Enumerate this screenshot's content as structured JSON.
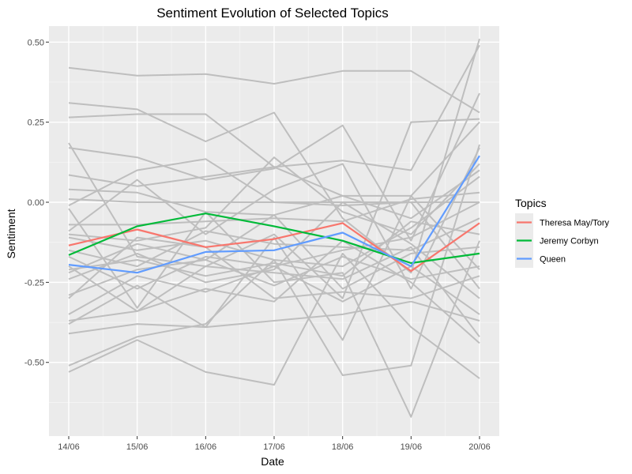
{
  "chart_data": {
    "type": "line",
    "title": "Sentiment Evolution of Selected Topics",
    "xlabel": "Date",
    "ylabel": "Sentiment",
    "categories": [
      "14/06",
      "15/06",
      "16/06",
      "17/06",
      "18/06",
      "19/06",
      "20/06"
    ],
    "ylim": [
      -0.73,
      0.55
    ],
    "yticks": [
      -0.5,
      -0.25,
      0.0,
      0.25,
      0.5
    ],
    "ytick_labels": [
      "-0.50",
      "-0.25",
      "0.00",
      "0.25",
      "0.50"
    ],
    "grid": true,
    "legend": {
      "title": "Topics",
      "position": "right"
    },
    "highlight_series": [
      {
        "name": "Theresa May/Tory",
        "color": "#F8766D",
        "values": [
          -0.135,
          -0.085,
          -0.14,
          -0.115,
          -0.065,
          -0.215,
          -0.065
        ]
      },
      {
        "name": "Jeremy Corbyn",
        "color": "#00BA38",
        "values": [
          -0.165,
          -0.075,
          -0.035,
          -0.075,
          -0.12,
          -0.19,
          -0.16
        ]
      },
      {
        "name": "Queen",
        "color": "#619CFF",
        "values": [
          -0.195,
          -0.22,
          -0.155,
          -0.15,
          -0.095,
          -0.2,
          0.145
        ]
      }
    ],
    "background_series_color": "#bebebe",
    "background_series": [
      [
        0.42,
        0.395,
        0.4,
        0.37,
        0.41,
        0.41,
        0.28
      ],
      [
        0.31,
        0.29,
        0.19,
        0.28,
        -0.05,
        -0.22,
        0.51
      ],
      [
        0.265,
        0.275,
        0.275,
        0.11,
        0.13,
        0.1,
        0.49
      ],
      [
        0.185,
        -0.17,
        -0.2,
        -0.1,
        -0.3,
        0.25,
        0.26
      ],
      [
        0.17,
        0.14,
        0.07,
        0.105,
        0.24,
        -0.12,
        0.34
      ],
      [
        0.085,
        0.05,
        0.08,
        0.11,
        0.02,
        -0.05,
        0.1
      ],
      [
        0.04,
        0.03,
        -0.03,
        -0.04,
        0.02,
        0.02,
        0.25
      ],
      [
        0.01,
        0.0,
        0.0,
        0.0,
        0.0,
        0.0,
        0.0
      ],
      [
        -0.01,
        0.1,
        0.135,
        0.0,
        -0.01,
        0.0,
        -0.27
      ],
      [
        -0.07,
        -0.07,
        -0.06,
        -0.05,
        -0.06,
        0.01,
        0.03
      ],
      [
        -0.09,
        0.07,
        -0.1,
        0.04,
        0.12,
        -0.27,
        0.17
      ],
      [
        -0.1,
        -0.12,
        -0.08,
        0.14,
        -0.03,
        -0.1,
        0.12
      ],
      [
        -0.11,
        -0.15,
        -0.12,
        -0.18,
        -0.2,
        -0.08,
        0.08
      ],
      [
        -0.15,
        -0.2,
        -0.09,
        -0.13,
        -0.14,
        -0.15,
        -0.05
      ],
      [
        -0.17,
        -0.27,
        -0.17,
        -0.2,
        -0.15,
        -0.11,
        0.0
      ],
      [
        -0.21,
        -0.18,
        -0.23,
        -0.19,
        -0.23,
        -0.06,
        -0.1
      ],
      [
        -0.22,
        -0.13,
        -0.18,
        -0.26,
        -0.17,
        -0.24,
        -0.2
      ],
      [
        -0.24,
        -0.16,
        -0.25,
        -0.21,
        0.0,
        -0.13,
        -0.3
      ],
      [
        -0.29,
        -0.21,
        -0.18,
        -0.04,
        -0.27,
        -0.16,
        -0.14
      ],
      [
        -0.3,
        -0.11,
        -0.14,
        -0.3,
        -0.28,
        -0.3,
        -0.23
      ],
      [
        -0.35,
        -0.23,
        -0.28,
        -0.2,
        -0.31,
        -0.2,
        -0.35
      ],
      [
        -0.37,
        -0.34,
        -0.2,
        -0.22,
        -0.24,
        -0.14,
        -0.42
      ],
      [
        -0.38,
        -0.26,
        -0.39,
        -0.11,
        -0.43,
        0.02,
        -0.21
      ],
      [
        -0.41,
        -0.38,
        -0.39,
        -0.37,
        -0.35,
        -0.31,
        -0.37
      ],
      [
        -0.51,
        -0.42,
        -0.38,
        -0.18,
        -0.54,
        -0.51,
        0.18
      ],
      [
        -0.53,
        -0.43,
        -0.53,
        -0.57,
        -0.16,
        -0.39,
        -0.55
      ],
      [
        -0.02,
        -0.33,
        -0.03,
        -0.25,
        -0.22,
        -0.67,
        -0.12
      ],
      [
        -0.2,
        -0.34,
        -0.27,
        -0.31,
        -0.12,
        -0.25,
        -0.44
      ]
    ]
  }
}
